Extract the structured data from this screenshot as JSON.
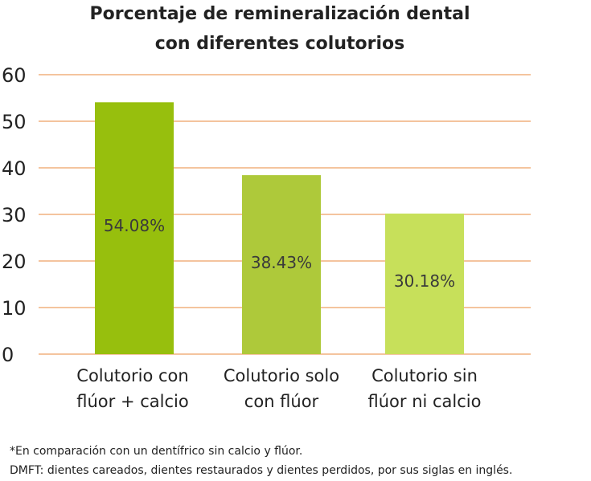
{
  "chart_data": {
    "type": "bar",
    "title_lines": [
      "Porcentaje de remineralización dental",
      "con diferentes colutorios"
    ],
    "categories": [
      [
        "Colutorio con",
        "flúor + calcio"
      ],
      [
        "Colutorio solo",
        "con flúor"
      ],
      [
        "Colutorio sin",
        "flúor ni calcio"
      ]
    ],
    "values": [
      54.08,
      38.43,
      30.18
    ],
    "data_labels": [
      "54.08%",
      "38.43%",
      "30.18%"
    ],
    "bar_colors": [
      "#97bf0d",
      "#aec93a",
      "#c7e05a"
    ],
    "yticks": [
      "0",
      "10",
      "20",
      "30",
      "40",
      "50",
      "60"
    ],
    "ylim": [
      0,
      60
    ],
    "grid": true,
    "grid_color": "#e88a3c",
    "footnotes": [
      "*En comparación con un dentífrico sin calcio y flúor.",
      "DMFT: dientes careados, dientes restaurados y dientes perdidos, por sus siglas en inglés."
    ]
  }
}
